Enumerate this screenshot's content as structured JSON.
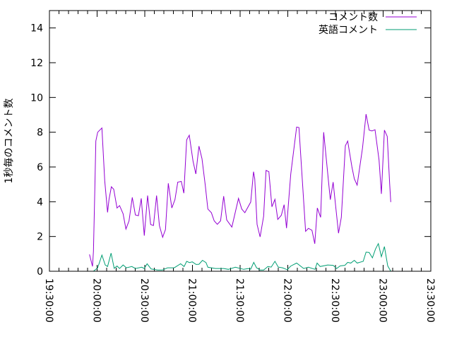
{
  "chart_data": {
    "type": "line",
    "title": "",
    "xlabel": "",
    "ylabel": "1秒毎のコメント数",
    "xlim": [
      "19:30:00",
      "23:30:00"
    ],
    "ylim": [
      0,
      15
    ],
    "x_ticks": [
      "19:30:00",
      "20:00:00",
      "20:30:00",
      "21:00:00",
      "21:30:00",
      "22:00:00",
      "22:30:00",
      "23:00:00",
      "23:30:00"
    ],
    "y_ticks": [
      "0",
      "2",
      "4",
      "6",
      "8",
      "10",
      "12",
      "14"
    ],
    "grid": false,
    "legend_position": "top-right",
    "series": [
      {
        "name": "コメント数",
        "color": "#9400d3",
        "points": [
          [
            "19:55:12",
            0.97
          ],
          [
            "19:57:07",
            0.28
          ],
          [
            "19:57:41",
            1.14
          ],
          [
            "19:58:08",
            2.95
          ],
          [
            "19:58:35",
            4.78
          ],
          [
            "19:59:12",
            7.49
          ],
          [
            "20:00:21",
            8.0
          ],
          [
            "20:03:01",
            8.24
          ],
          [
            "20:03:47",
            6.95
          ],
          [
            "20:04:48",
            5.2
          ],
          [
            "20:06:35",
            3.39
          ],
          [
            "20:07:28",
            4.12
          ],
          [
            "20:08:59",
            4.86
          ],
          [
            "20:10:27",
            4.72
          ],
          [
            "20:12:32",
            3.64
          ],
          [
            "20:14:08",
            3.78
          ],
          [
            "20:16:21",
            3.31
          ],
          [
            "20:18:08",
            2.43
          ],
          [
            "20:20:05",
            2.9
          ],
          [
            "20:22:08",
            4.25
          ],
          [
            "20:24:05",
            3.24
          ],
          [
            "20:26:00",
            3.2
          ],
          [
            "20:27:47",
            4.19
          ],
          [
            "20:29:41",
            2.05
          ],
          [
            "20:31:47",
            4.36
          ],
          [
            "20:33:41",
            2.69
          ],
          [
            "20:35:28",
            2.63
          ],
          [
            "20:37:25",
            4.36
          ],
          [
            "20:39:12",
            2.63
          ],
          [
            "20:41:15",
            1.96
          ],
          [
            "20:43:01",
            2.4
          ],
          [
            "20:44:48",
            5.06
          ],
          [
            "20:47:01",
            3.64
          ],
          [
            "20:48:59",
            4.12
          ],
          [
            "20:50:45",
            5.13
          ],
          [
            "20:52:59",
            5.17
          ],
          [
            "20:54:35",
            4.49
          ],
          [
            "20:56:21",
            7.56
          ],
          [
            "20:58:00",
            7.83
          ],
          [
            "21:00:21",
            6.34
          ],
          [
            "21:02:08",
            5.6
          ],
          [
            "21:04:05",
            7.2
          ],
          [
            "21:06:00",
            6.48
          ],
          [
            "21:08:05",
            4.93
          ],
          [
            "21:09:41",
            3.58
          ],
          [
            "21:11:55",
            3.37
          ],
          [
            "21:13:41",
            2.9
          ],
          [
            "21:15:39",
            2.7
          ],
          [
            "21:17:41",
            2.9
          ],
          [
            "21:19:39",
            4.32
          ],
          [
            "21:21:33",
            2.95
          ],
          [
            "21:24:48",
            2.54
          ],
          [
            "21:28:59",
            4.19
          ],
          [
            "21:31:01",
            3.58
          ],
          [
            "21:32:59",
            3.37
          ],
          [
            "21:36:40",
            3.98
          ],
          [
            "21:38:27",
            5.73
          ],
          [
            "21:39:12",
            5.32
          ],
          [
            "21:40:40",
            2.69
          ],
          [
            "21:42:35",
            1.98
          ],
          [
            "21:44:48",
            3.17
          ],
          [
            "21:46:19",
            5.8
          ],
          [
            "21:48:05",
            5.73
          ],
          [
            "21:50:00",
            3.71
          ],
          [
            "21:51:55",
            4.14
          ],
          [
            "21:53:41",
            2.98
          ],
          [
            "21:55:55",
            3.22
          ],
          [
            "21:57:41",
            3.83
          ],
          [
            "21:59:12",
            2.48
          ],
          [
            "22:01:52",
            5.6
          ],
          [
            "22:05:33",
            8.3
          ],
          [
            "22:07:01",
            8.27
          ],
          [
            "22:11:12",
            2.3
          ],
          [
            "22:12:59",
            2.47
          ],
          [
            "22:15:12",
            2.36
          ],
          [
            "22:16:59",
            1.58
          ],
          [
            "22:18:35",
            3.64
          ],
          [
            "22:20:40",
            3.1
          ],
          [
            "22:22:35",
            8.0
          ],
          [
            "22:25:33",
            5.22
          ],
          [
            "22:26:45",
            4.12
          ],
          [
            "22:28:32",
            5.13
          ],
          [
            "22:31:55",
            2.19
          ],
          [
            "22:33:41",
            3.1
          ],
          [
            "22:36:13",
            7.22
          ],
          [
            "22:37:41",
            7.49
          ],
          [
            "22:40:21",
            6.0
          ],
          [
            "22:41:52",
            5.32
          ],
          [
            "22:43:39",
            4.96
          ],
          [
            "22:47:01",
            7.09
          ],
          [
            "22:49:15",
            9.04
          ],
          [
            "22:51:12",
            8.12
          ],
          [
            "22:52:59",
            8.07
          ],
          [
            "22:54:53",
            8.14
          ],
          [
            "22:57:25",
            6.4
          ],
          [
            "22:58:53",
            4.45
          ],
          [
            "23:00:48",
            8.12
          ],
          [
            "23:02:35",
            7.76
          ],
          [
            "23:04:05",
            5.06
          ],
          [
            "23:04:48",
            3.98
          ]
        ]
      },
      {
        "name": "英語コメント",
        "color": "#009e73",
        "points": [
          [
            "19:57:41",
            0
          ],
          [
            "20:00:21",
            0.2
          ],
          [
            "20:03:01",
            0.93
          ],
          [
            "20:05:07",
            0.36
          ],
          [
            "20:06:35",
            0.27
          ],
          [
            "20:08:48",
            1.04
          ],
          [
            "20:10:45",
            0.17
          ],
          [
            "20:12:32",
            0.3
          ],
          [
            "20:14:08",
            0.16
          ],
          [
            "20:16:21",
            0.36
          ],
          [
            "20:18:27",
            0.2
          ],
          [
            "20:21:52",
            0.27
          ],
          [
            "20:24:05",
            0.16
          ],
          [
            "20:28:05",
            0.23
          ],
          [
            "20:29:41",
            0.16
          ],
          [
            "20:31:28",
            0.43
          ],
          [
            "20:34:00",
            0.13
          ],
          [
            "20:38:08",
            0.07
          ],
          [
            "20:41:07",
            0.07
          ],
          [
            "20:44:21",
            0.2
          ],
          [
            "20:48:32",
            0.2
          ],
          [
            "20:52:32",
            0.43
          ],
          [
            "20:54:45",
            0.27
          ],
          [
            "20:56:21",
            0.57
          ],
          [
            "20:58:08",
            0.5
          ],
          [
            "20:59:55",
            0.54
          ],
          [
            "21:02:19",
            0.39
          ],
          [
            "21:04:05",
            0.4
          ],
          [
            "21:06:19",
            0.63
          ],
          [
            "21:08:32",
            0.5
          ],
          [
            "21:09:41",
            0.23
          ],
          [
            "21:14:27",
            0.16
          ],
          [
            "21:19:39",
            0.16
          ],
          [
            "21:22:35",
            0.11
          ],
          [
            "21:27:01",
            0.23
          ],
          [
            "21:32:13",
            0.11
          ],
          [
            "21:35:12",
            0.16
          ],
          [
            "21:36:40",
            0.12
          ],
          [
            "21:38:35",
            0.51
          ],
          [
            "21:40:21",
            0.2
          ],
          [
            "21:42:35",
            0.07
          ],
          [
            "21:44:48",
            0.07
          ],
          [
            "21:47:28",
            0.27
          ],
          [
            "21:49:33",
            0.24
          ],
          [
            "21:51:55",
            0.57
          ],
          [
            "21:54:00",
            0.24
          ],
          [
            "21:56:40",
            0.2
          ],
          [
            "21:59:39",
            0.09
          ],
          [
            "22:01:52",
            0.3
          ],
          [
            "22:05:33",
            0.47
          ],
          [
            "22:10:00",
            0.16
          ],
          [
            "22:12:59",
            0.23
          ],
          [
            "22:17:07",
            0.11
          ],
          [
            "22:18:26",
            0.47
          ],
          [
            "22:20:21",
            0.27
          ],
          [
            "22:25:07",
            0.36
          ],
          [
            "22:28:32",
            0.34
          ],
          [
            "22:30:45",
            0.16
          ],
          [
            "22:32:59",
            0.31
          ],
          [
            "22:35:55",
            0.34
          ],
          [
            "22:37:41",
            0.51
          ],
          [
            "22:39:39",
            0.47
          ],
          [
            "22:41:52",
            0.63
          ],
          [
            "22:43:39",
            0.47
          ],
          [
            "22:47:28",
            0.57
          ],
          [
            "22:49:15",
            1.1
          ],
          [
            "22:51:12",
            1.08
          ],
          [
            "22:53:15",
            0.77
          ],
          [
            "22:55:12",
            1.28
          ],
          [
            "22:56:59",
            1.59
          ],
          [
            "22:58:53",
            0.84
          ],
          [
            "23:00:48",
            1.42
          ],
          [
            "23:02:53",
            0.31
          ],
          [
            "23:04:48",
            0
          ]
        ]
      }
    ]
  }
}
